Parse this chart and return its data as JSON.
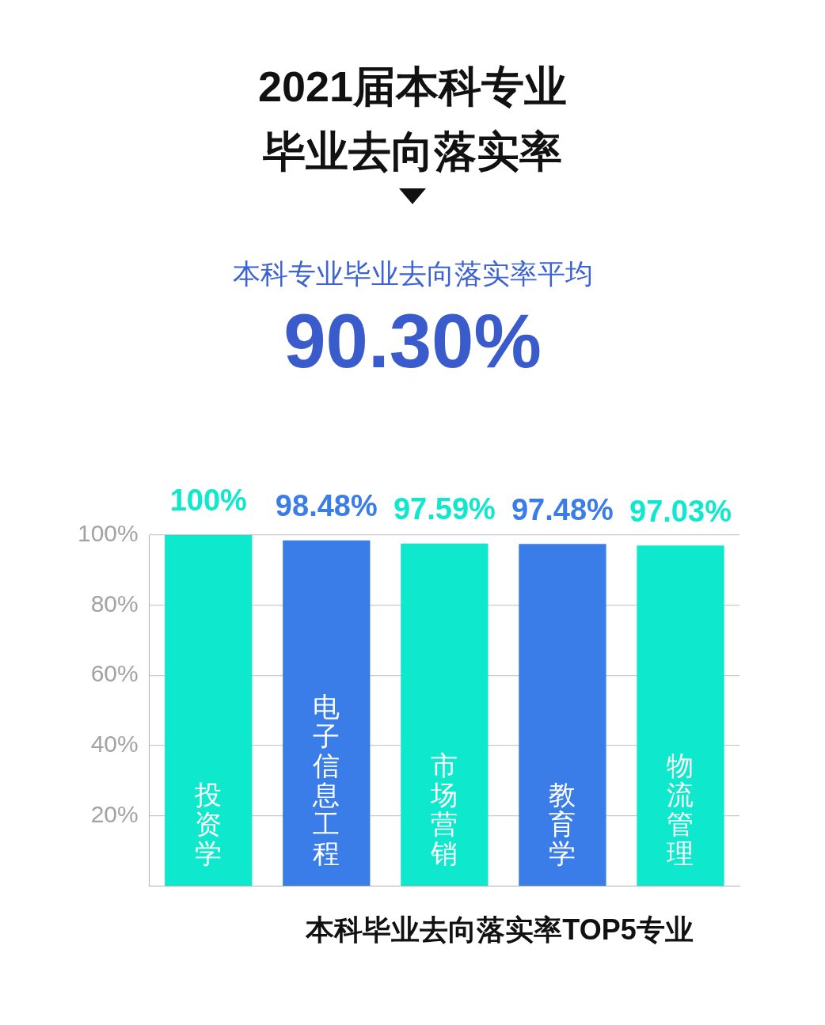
{
  "chart_data": {
    "type": "bar",
    "title": "2021届本科专业毕业去向落实率",
    "subtitle": "本科专业毕业去向落实率平均",
    "annotations": [
      "90.30%"
    ],
    "xlabel": "本科毕业去向落实率TOP5专业",
    "categories": [
      "投资学",
      "电子信息工程",
      "市场营销",
      "教育学",
      "物流管理"
    ],
    "values": [
      100,
      98.48,
      97.59,
      97.48,
      97.03
    ],
    "colors": [
      "#0ee8cc",
      "#3a7ce8",
      "#0ee8cc",
      "#3a7ce8",
      "#0ee8cc"
    ],
    "value_labels": [
      "100%",
      "98.48%",
      "97.59%",
      "97.48%",
      "97.03%"
    ],
    "ylim": [
      0,
      100
    ],
    "yticks": [
      {
        "value": 20,
        "label": "20%"
      },
      {
        "value": 40,
        "label": "40%"
      },
      {
        "value": 60,
        "label": "60%"
      },
      {
        "value": 80,
        "label": "80%"
      },
      {
        "value": 100,
        "label": "100%"
      }
    ],
    "grid": "y",
    "legend": false
  }
}
